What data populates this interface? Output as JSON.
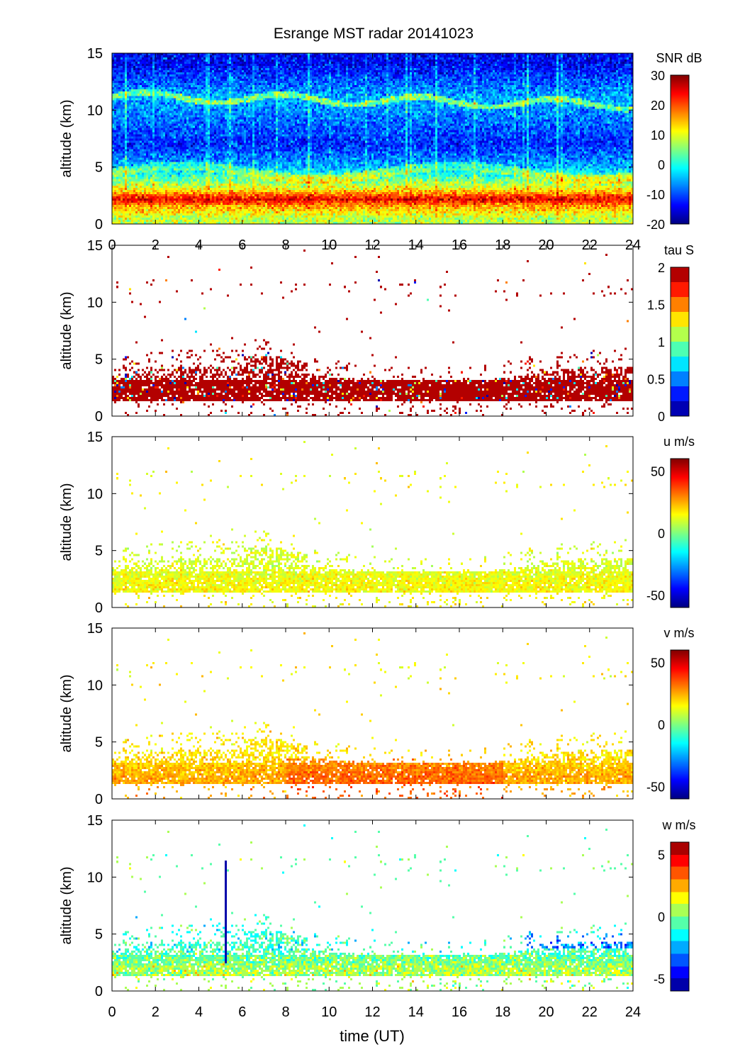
{
  "title": "Esrange MST radar 20141023",
  "xlabel": "time (UT)",
  "chart_data": [
    {
      "type": "heatmap",
      "quantity": "SNR",
      "colorbar_label": "SNR dB",
      "ylabel": "altitude (km)",
      "xlim": [
        0,
        24
      ],
      "ylim": [
        0,
        15
      ],
      "xticks": [
        "0",
        "2",
        "4",
        "6",
        "8",
        "10",
        "12",
        "14",
        "16",
        "18",
        "20",
        "22",
        "24"
      ],
      "yticks": [
        "0",
        "5",
        "10",
        "15"
      ],
      "clim": [
        -20,
        30
      ],
      "cticks": [
        "30",
        "20",
        "10",
        "0",
        "-10",
        "-20"
      ],
      "levels": 0,
      "profile": {
        "altitude_km": [
          0.5,
          1.5,
          2.2,
          3,
          4,
          5,
          7,
          11,
          14
        ],
        "typical_value": [
          8,
          15,
          25,
          12,
          3,
          -5,
          -12,
          -5,
          -14
        ]
      }
    },
    {
      "type": "heatmap",
      "quantity": "tau",
      "colorbar_label": "tau S",
      "ylabel": "altitude (km)",
      "xlim": [
        0,
        24
      ],
      "ylim": [
        0,
        15
      ],
      "xticks": [],
      "yticks": [
        "0",
        "5",
        "10",
        "15"
      ],
      "clim": [
        0,
        2
      ],
      "cticks": [
        "2",
        "1.5",
        "1",
        "0.5",
        "0"
      ],
      "levels": 10,
      "profile": {
        "altitude_km": [
          2,
          4,
          11
        ],
        "typical_value": [
          2,
          2,
          2
        ]
      }
    },
    {
      "type": "heatmap",
      "quantity": "u",
      "colorbar_label": "u m/s",
      "ylabel": "altitude (km)",
      "xlim": [
        0,
        24
      ],
      "ylim": [
        0,
        15
      ],
      "xticks": [],
      "yticks": [
        "0",
        "5",
        "10",
        "15"
      ],
      "clim": [
        -60,
        60
      ],
      "cticks": [
        "50",
        "0",
        "-50"
      ],
      "levels": 0,
      "profile": {
        "altitude_km": [
          2,
          4,
          11
        ],
        "typical_value": [
          15,
          10,
          15
        ]
      }
    },
    {
      "type": "heatmap",
      "quantity": "v",
      "colorbar_label": "v m/s",
      "ylabel": "altitude (km)",
      "xlim": [
        0,
        24
      ],
      "ylim": [
        0,
        15
      ],
      "xticks": [],
      "yticks": [
        "0",
        "5",
        "10",
        "15"
      ],
      "clim": [
        -60,
        60
      ],
      "cticks": [
        "50",
        "0",
        "-50"
      ],
      "levels": 0,
      "profile": {
        "altitude_km": [
          2,
          4,
          11
        ],
        "typical_value": [
          25,
          18,
          15
        ]
      }
    },
    {
      "type": "heatmap",
      "quantity": "w",
      "colorbar_label": "w m/s",
      "ylabel": "altitude (km)",
      "xlim": [
        0,
        24
      ],
      "ylim": [
        0,
        15
      ],
      "xticks": [
        "0",
        "2",
        "4",
        "6",
        "8",
        "10",
        "12",
        "14",
        "16",
        "18",
        "20",
        "22",
        "24"
      ],
      "yticks": [
        "0",
        "5",
        "10",
        "15"
      ],
      "clim": [
        -6,
        6
      ],
      "cticks": [
        "5",
        "0",
        "-5"
      ],
      "levels": 12,
      "profile": {
        "altitude_km": [
          2,
          4,
          11
        ],
        "typical_value": [
          0.5,
          -1,
          0
        ]
      }
    }
  ]
}
